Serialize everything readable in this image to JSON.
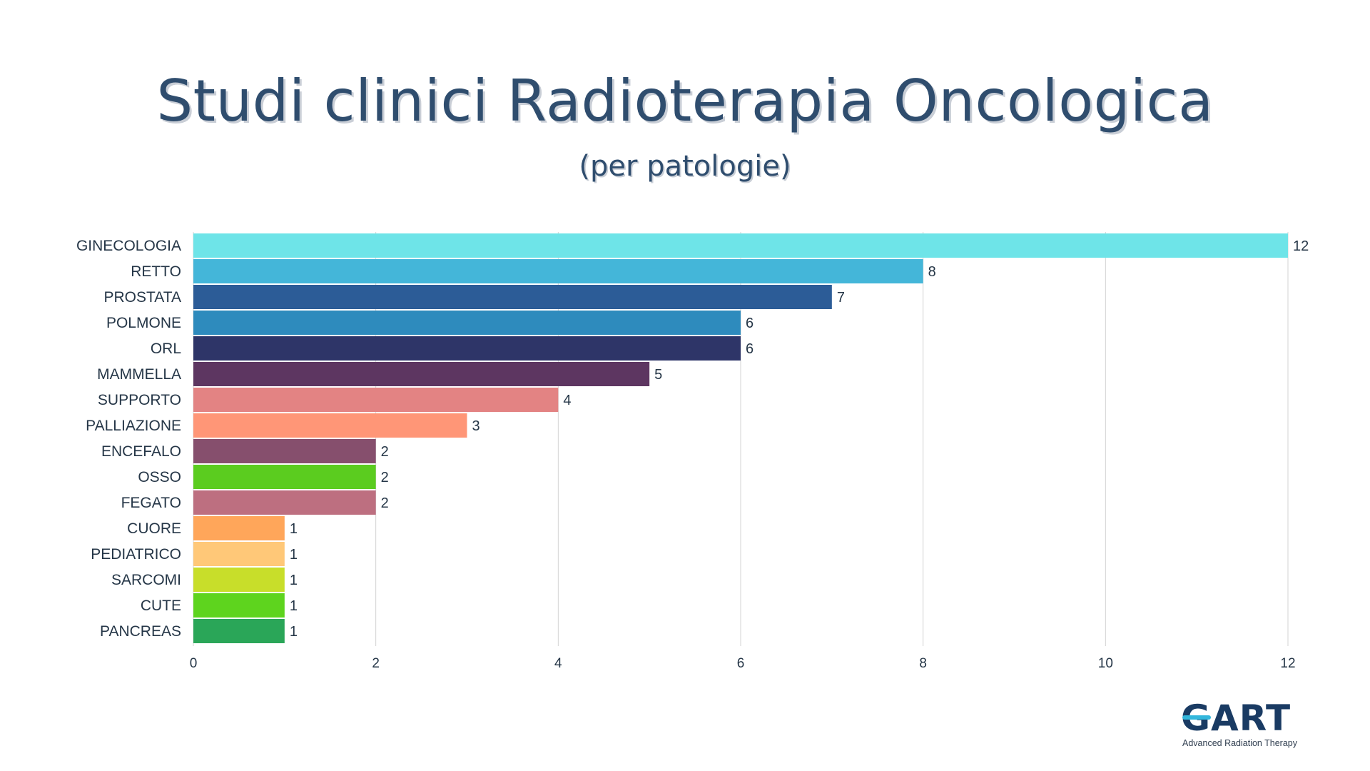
{
  "title": "Studi clinici Radioterapia Oncologica",
  "subtitle": "(per patologie)",
  "logo": {
    "name": "GART",
    "tagline": "Advanced Radiation Therapy"
  },
  "chart_data": {
    "type": "bar",
    "orientation": "horizontal",
    "title": "Studi clinici Radioterapia Oncologica",
    "subtitle": "(per patologie)",
    "xlim": [
      0,
      12
    ],
    "x_ticks": [
      0,
      2,
      4,
      6,
      8,
      10,
      12
    ],
    "grid": "vertical",
    "categories": [
      "GINECOLOGIA",
      "RETTO",
      "PROSTATA",
      "POLMONE",
      "ORL",
      "MAMMELLA",
      "SUPPORTO",
      "PALLIAZIONE",
      "ENCEFALO",
      "OSSO",
      "FEGATO",
      "CUORE",
      "PEDIATRICO",
      "SARCOMI",
      "CUTE",
      "PANCREAS"
    ],
    "values": [
      12,
      8,
      7,
      6,
      6,
      5,
      4,
      3,
      2,
      2,
      2,
      1,
      1,
      1,
      1,
      1
    ],
    "colors": [
      "#6ee4e8",
      "#44b6d9",
      "#2c5c97",
      "#2e8bbd",
      "#2e3568",
      "#5d3661",
      "#e38383",
      "#ff9677",
      "#864f6d",
      "#5bcc1f",
      "#bd6f80",
      "#ffa65a",
      "#ffc878",
      "#c8de2a",
      "#5ed41e",
      "#2aa658"
    ]
  }
}
